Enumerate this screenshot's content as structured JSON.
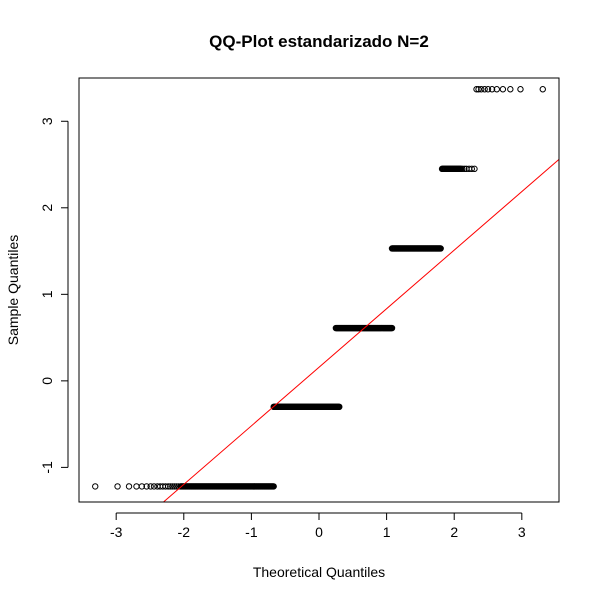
{
  "chart_data": {
    "type": "scatter",
    "title": "QQ-Plot estandarizado N=2",
    "xlabel": "Theoretical Quantiles",
    "ylabel": "Sample Quantiles",
    "xlim": [
      -3.55,
      3.55
    ],
    "ylim": [
      -1.4,
      3.5
    ],
    "x_ticks": [
      -3,
      -2,
      -1,
      0,
      1,
      2,
      3
    ],
    "y_ticks": [
      -1,
      0,
      1,
      2,
      3
    ],
    "grid": false,
    "legend": "none",
    "point_style": "open-circle",
    "point_color": "#000000",
    "levels": [
      {
        "y": -1.22,
        "x_min": -2.05,
        "x_max": -0.67,
        "sparse_x": [
          -3.31,
          -2.98,
          -2.81,
          -2.7,
          -2.62,
          -2.55,
          -2.49,
          -2.44,
          -2.39,
          -2.35,
          -2.31,
          -2.27,
          -2.23,
          -2.2,
          -2.17,
          -2.14,
          -2.11,
          -2.08
        ]
      },
      {
        "y": -0.3,
        "x_min": -0.67,
        "x_max": 0.3,
        "sparse_x": []
      },
      {
        "y": 0.61,
        "x_min": 0.25,
        "x_max": 1.08,
        "sparse_x": []
      },
      {
        "y": 1.53,
        "x_min": 1.08,
        "x_max": 1.8,
        "sparse_x": []
      },
      {
        "y": 2.45,
        "x_min": 1.82,
        "x_max": 2.1,
        "sparse_x": [
          2.12,
          2.15,
          2.18,
          2.22,
          2.26,
          2.3
        ]
      },
      {
        "y": 3.37,
        "x_min": 2.33,
        "x_max": 2.33,
        "sparse_x": [
          2.36,
          2.4,
          2.45,
          2.5,
          2.56,
          2.63,
          2.72,
          2.83,
          2.98,
          3.31
        ]
      }
    ],
    "reference_line": {
      "x1": -2.3,
      "y1": -1.4,
      "x2": 3.55,
      "y2": 2.56,
      "color": "#ff0000"
    }
  }
}
